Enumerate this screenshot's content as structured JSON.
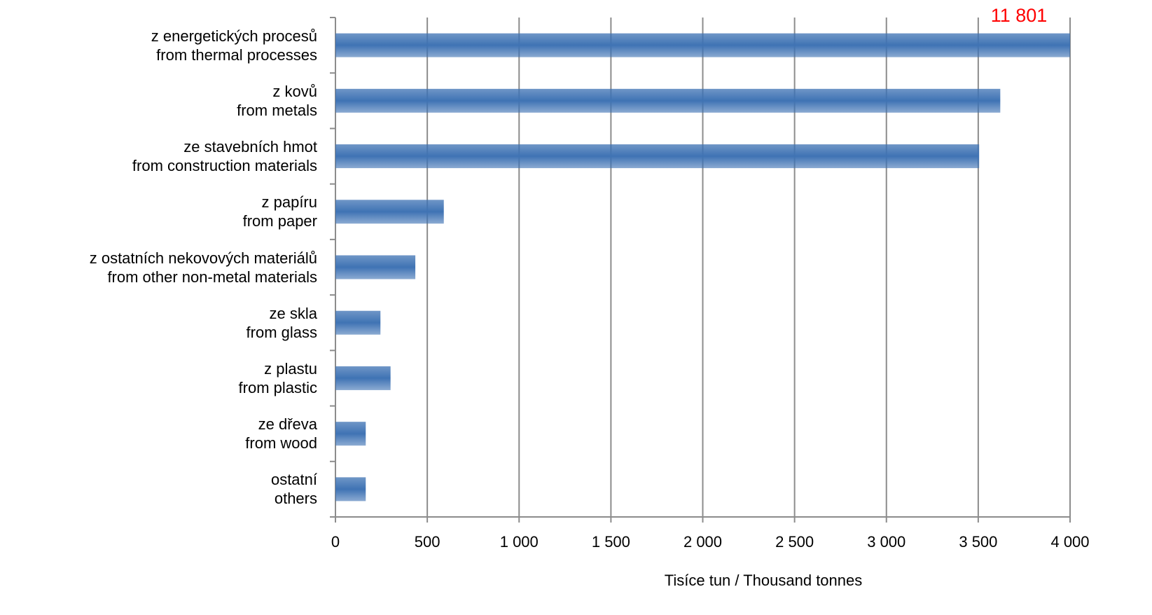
{
  "chart_data": {
    "type": "bar",
    "orientation": "horizontal",
    "categories": [
      "z energetických procesů\nfrom thermal processes",
      "z kovů\nfrom metals",
      "ze stavebních hmot\nfrom construction materials",
      "z papíru\nfrom paper",
      "z ostatních nekovových materiálů\nfrom other non-metal materials",
      "ze skla\nfrom glass",
      "z plastu\nfrom plastic",
      "ze dřeva\nfrom wood",
      "ostatní\nothers"
    ],
    "values": [
      11801,
      3620,
      3505,
      590,
      435,
      245,
      300,
      165,
      165
    ],
    "value_labels": [
      "11 801",
      null,
      null,
      null,
      null,
      null,
      null,
      null,
      null
    ],
    "value_label_color": "#ff0000",
    "color": "#3f73b4",
    "xlim": [
      0,
      4000
    ],
    "xticks": [
      0,
      500,
      {
        "value": 1000,
        "label": "1 000"
      },
      {
        "value": 1500,
        "label": "1 500"
      },
      {
        "value": 2000,
        "label": "2 000"
      },
      {
        "value": 2500,
        "label": "2 500"
      },
      {
        "value": 3000,
        "label": "3 000"
      },
      {
        "value": 3500,
        "label": "3 500"
      },
      {
        "value": 4000,
        "label": "4 000"
      }
    ],
    "xlabel": "Tisíce tun / Thousand tonnes",
    "grid": true
  }
}
